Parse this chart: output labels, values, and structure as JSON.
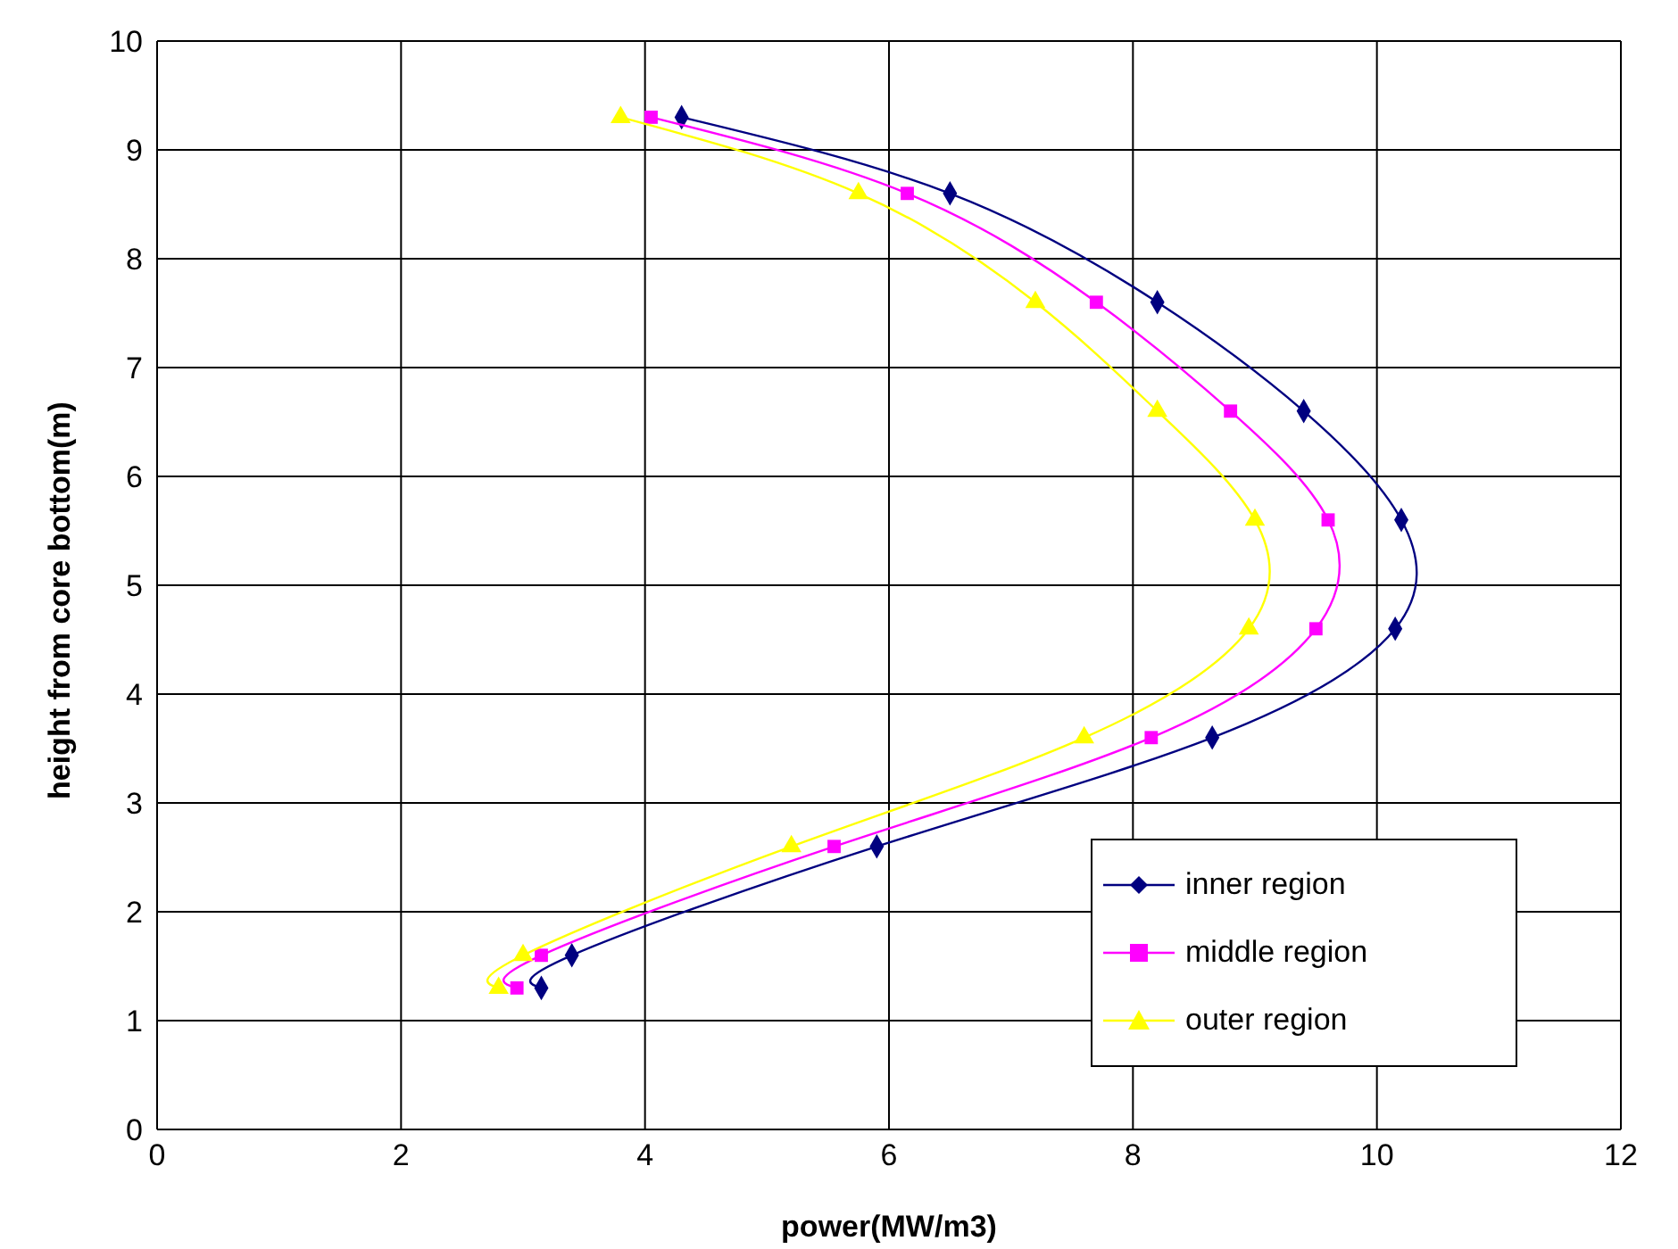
{
  "chart_data": {
    "type": "line",
    "xlabel": "power(MW/m3)",
    "ylabel": "height from core bottom(m)",
    "xlim": [
      0,
      12
    ],
    "xticks": [
      0,
      2,
      4,
      6,
      8,
      10,
      12
    ],
    "ylim": [
      0,
      10
    ],
    "yticks": [
      0,
      1,
      2,
      3,
      4,
      5,
      6,
      7,
      8,
      9,
      10
    ],
    "grid": true,
    "legend": "bottom right",
    "line_style": "solid",
    "series": [
      {
        "name": "inner region",
        "color": "#000080",
        "marker": "diamond",
        "x": [
          4.3,
          6.5,
          8.2,
          9.4,
          10.2,
          10.15,
          8.65,
          5.9,
          3.4,
          3.15
        ],
        "values": [
          9.3,
          8.6,
          7.6,
          6.6,
          5.6,
          4.6,
          3.6,
          2.6,
          1.6,
          1.3
        ]
      },
      {
        "name": "middle region",
        "color": "#ff00ff",
        "marker": "square",
        "x": [
          4.05,
          6.15,
          7.7,
          8.8,
          9.6,
          9.5,
          8.15,
          5.55,
          3.15,
          2.95
        ],
        "values": [
          9.3,
          8.6,
          7.6,
          6.6,
          5.6,
          4.6,
          3.6,
          2.6,
          1.6,
          1.3
        ]
      },
      {
        "name": "outer region",
        "color": "#ffff00",
        "marker": "triangle",
        "x": [
          3.8,
          5.75,
          7.2,
          8.2,
          9.0,
          8.95,
          7.6,
          5.2,
          3.0,
          2.8
        ],
        "values": [
          9.3,
          8.6,
          7.6,
          6.6,
          5.6,
          4.6,
          3.6,
          2.6,
          1.6,
          1.3
        ]
      }
    ]
  }
}
